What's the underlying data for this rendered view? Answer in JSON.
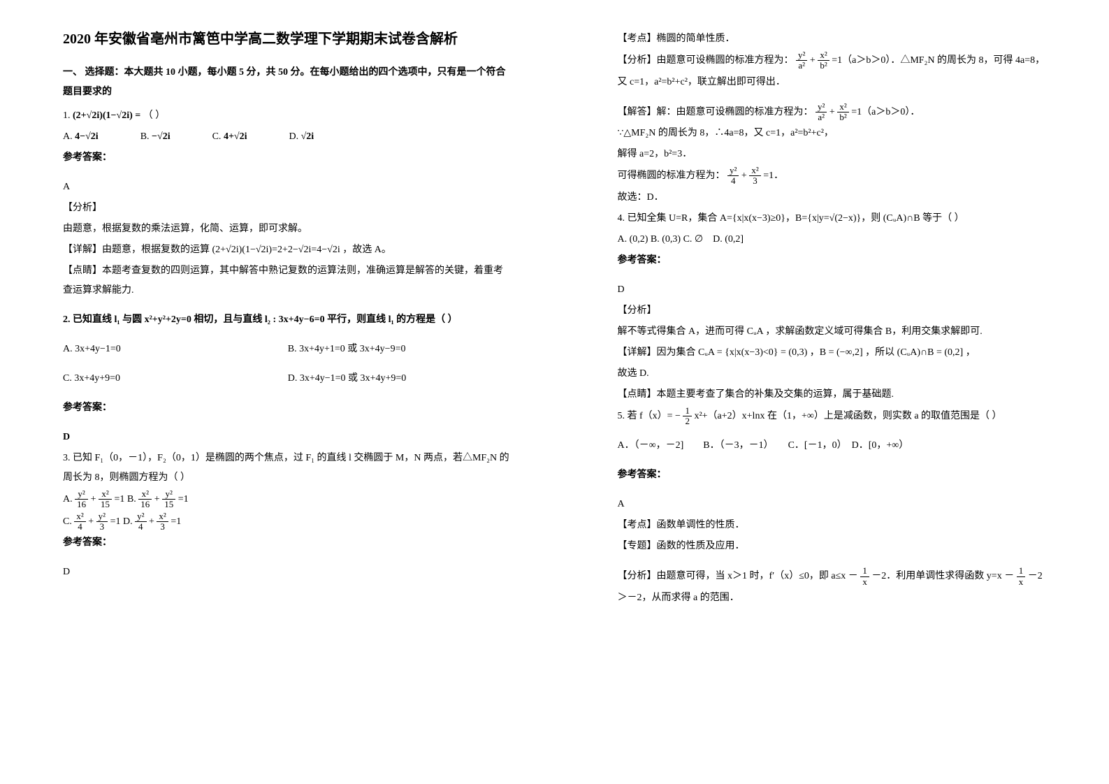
{
  "title": "2020 年安徽省亳州市篱笆中学高二数学理下学期期末试卷含解析",
  "part1_heading": "一、 选择题：本大题共 10 小题，每小题 5 分，共 50 分。在每小题给出的四个选项中，只有是一个符合题目要求的",
  "q1": {
    "stem_prefix": "1. ",
    "expr": "(2+√2i)(1−√2i) =",
    "blank": "（        ）",
    "opts": {
      "A": "4−√2i",
      "B": "−√2i",
      "C": "4+√2i",
      "D": "√2i"
    },
    "ans_label": "参考答案：",
    "ans": "A",
    "analysis_label": "【分析】",
    "analysis": "由题意，根据复数的乘法运算，化简、运算，即可求解。",
    "detail_label": "【详解】",
    "detail": "由题意，根据复数的运算 (2+√2i)(1−√2i)=2+2−√2i=4−√2i ，故选 A。",
    "point_label": "【点睛】",
    "point": "本题考查复数的四则运算，其中解答中熟记复数的运算法则，准确运算是解答的关键，着重考查运算求解能力."
  },
  "q2": {
    "stem_a": "2. 已知直线 l₁ 与圆 x²+y²+2y=0 相切，且与直线 l₂ : 3x+4y−6=0 平行，则直线 l₁ 的方程是（      ）",
    "A": "3x+4y−1=0",
    "B": "3x+4y+1=0 或 3x+4y−9=0",
    "C": "3x+4y+9=0",
    "D": "3x+4y−1=0 或 3x+4y+9=0",
    "ans_label": "参考答案：",
    "ans": "D"
  },
  "q3": {
    "stem": "3. 已知 F₁（0，－1），F₂（0，1）是椭圆的两个焦点，过 F₁ 的直线 l 交椭圆于 M，N 两点，若△MF₂N 的周长为 8，则椭圆方程为（    ）",
    "A_l": "y²",
    "A_ld": "16",
    "A_r": "x²",
    "A_rd": "15",
    "B_l": "x²",
    "B_ld": "16",
    "B_r": "y²",
    "B_rd": "15",
    "C_l": "x²",
    "C_ld": "4",
    "C_r": "y²",
    "C_rd": "3",
    "D_l": "y²",
    "D_ld": "4",
    "D_r": "x²",
    "D_rd": "3",
    "eq": "=1",
    "ans_label": "参考答案：",
    "ans": "D",
    "kaodian_label": "【考点】",
    "kaodian": "椭圆的简单性质．",
    "fenxi_label": "【分析】",
    "fenxi_a": "由题意可设椭圆的标准方程为：",
    "fenxi_b": "=1（a＞b＞0）．△MF₂N 的周长为 8，可得 4a=8，",
    "fenxi_c": "又 c=1，a²=b²+c²，联立解出即可得出．",
    "jieda_label": "【解答】",
    "jieda_a": "解：由题意可设椭圆的标准方程为：",
    "jieda_b": "=1（a＞b＞0）．",
    "jieda_c": "∵△MF₂N 的周长为 8，∴4a=8，又 c=1，a²=b²+c²，",
    "jieda_d": "解得 a=2，b²=3．",
    "jieda_e": "可得椭圆的标准方程为：",
    "jieda_f": "=1．",
    "jieda_g": "故选：D．"
  },
  "q4": {
    "stem_a": "4. 已知全集 U=R，集合 A={x|x(x−3)≥0}，B={x|y=√(2−x)}，则 (CᵤA)∩B 等于（        ）",
    "opts": "A. (0,2) B. (0,3) C. ∅　D. (0,2]",
    "ans_label": "参考答案：",
    "ans": "D",
    "analysis_label": "【分析】",
    "analysis": "解不等式得集合 A，进而可得 CᵤA ，求解函数定义域可得集合 B，利用交集求解即可.",
    "detail_label": "【详解】",
    "detail": "因为集合 CᵤA = {x|x(x−3)<0} = (0,3) ，B = (−∞,2] ，所以 (CᵤA)∩B = (0,2] ，",
    "detail2": "故选 D.",
    "point_label": "【点睛】",
    "point": "本题主要考查了集合的补集及交集的运算，属于基础题."
  },
  "q5": {
    "stem_a": "5. 若 f（x）= −",
    "stem_b": "x²+（a+2）x+lnx 在（1，+∞）上是减函数，则实数 a 的取值范围是（    ）",
    "opts": "A．（－∞，－2]　　B．（－3，－1）　　C．[－1，0）　D．[0，+∞）",
    "ans_label": "参考答案：",
    "ans": "A",
    "kaodian_label": "【考点】",
    "kaodian": "函数单调性的性质．",
    "zhuanti_label": "【专题】",
    "zhuanti": "函数的性质及应用．",
    "fenxi_label": "【分析】",
    "fenxi_a": "由题意可得，当 x＞1 时，f′（x）≤0，即 a≤x －",
    "fenxi_b": "－2．利用单调性求得函数 y=x －",
    "fenxi_c": "－2",
    "fenxi_d": "＞－2，从而求得 a 的范围．"
  },
  "ellipse_frac": {
    "num_l": "y²",
    "den_l": "a²",
    "num_r": "x²",
    "den_r": "b²"
  },
  "ellipse_frac2": {
    "num_l": "y²",
    "den_l": "4",
    "num_r": "x²",
    "den_r": "3"
  },
  "half": {
    "num": "1",
    "den": "2"
  },
  "onex": {
    "num": "1",
    "den": "x"
  }
}
